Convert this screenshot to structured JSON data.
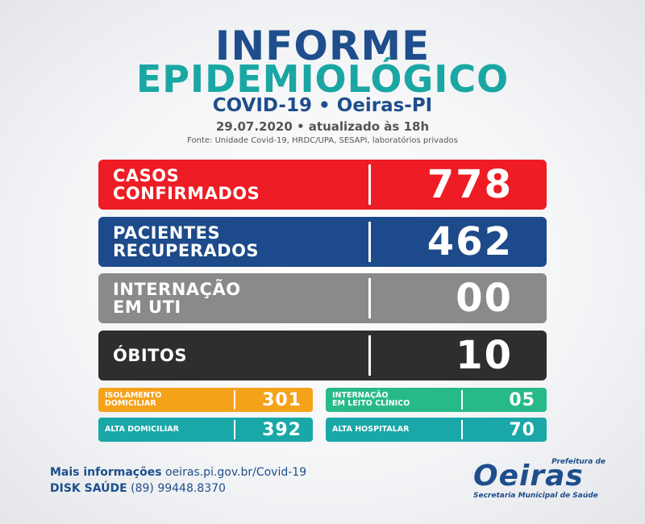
{
  "header": {
    "title_line1": "INFORME",
    "title_line2": "EPIDEMIOLÓGICO",
    "subtitle": "COVID-19 • Oeiras-PI",
    "date": "29.07.2020 • atualizado às 18h",
    "source": "Fonte: Unidade Covid-19, HRDC/UPA, SESAPI, laboratórios privados"
  },
  "stats": {
    "confirmed": {
      "label_line1": "CASOS",
      "label_line2": "CONFIRMADOS",
      "value": "778",
      "color": "#ee1c24"
    },
    "recovered": {
      "label_line1": "PACIENTES",
      "label_line2": "RECUPERADOS",
      "value": "462",
      "color": "#1d4a8a"
    },
    "icu": {
      "label_line1": "INTERNAÇÃO",
      "label_line2": "EM UTI",
      "value": "00",
      "color": "#8a8a8a"
    },
    "deaths": {
      "label": "ÓBITOS",
      "value": "10",
      "color": "#2e2e2e"
    }
  },
  "details": {
    "home_isolation": {
      "label_line1": "ISOLAMENTO",
      "label_line2": "DOMICILIAR",
      "value": "301"
    },
    "clinical_bed": {
      "label_line1": "INTERNAÇÃO",
      "label_line2": "EM LEITO CLÍNICO",
      "value": "05"
    },
    "home_discharge": {
      "label": "ALTA DOMICILIAR",
      "value": "392"
    },
    "hospital_discharge": {
      "label": "ALTA HOSPITALAR",
      "value": "70"
    }
  },
  "footer": {
    "info_label": "Mais informações",
    "info_url": "oeiras.pi.gov.br/Covid-19",
    "phone_label": "DISK SAÚDE",
    "phone": "(89) 99448.8370"
  },
  "logo": {
    "prefeitura": "Prefeitura de",
    "name": "Oeiras",
    "secretaria": "Secretaria Municipal de Saúde"
  }
}
